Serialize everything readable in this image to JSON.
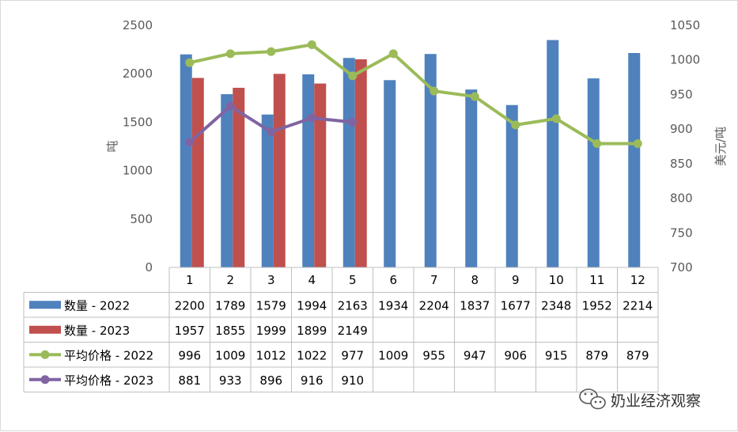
{
  "chart_data": {
    "type": "bar",
    "categories": [
      "1",
      "2",
      "3",
      "4",
      "5",
      "6",
      "7",
      "8",
      "9",
      "10",
      "11",
      "12"
    ],
    "ylabel": "吨",
    "y2label": "美元/吨",
    "ylim": [
      0,
      2500
    ],
    "y2lim": [
      700,
      1050
    ],
    "yticks": [
      "0",
      "500",
      "1000",
      "1500",
      "2000",
      "2500"
    ],
    "y2ticks": [
      "700",
      "750",
      "800",
      "850",
      "900",
      "950",
      "1000",
      "1050"
    ],
    "grid": false,
    "legend": "data-table",
    "series": [
      {
        "name": "数量 - 2022",
        "kind": "bar",
        "axis": "left",
        "color": "#4f81bd",
        "values": [
          2200,
          1789,
          1579,
          1994,
          2163,
          1934,
          2204,
          1837,
          1677,
          2348,
          1952,
          2214
        ]
      },
      {
        "name": "数量 - 2023",
        "kind": "bar",
        "axis": "left",
        "color": "#c0504d",
        "values": [
          1957,
          1855,
          1999,
          1899,
          2149,
          null,
          null,
          null,
          null,
          null,
          null,
          null
        ]
      },
      {
        "name": "平均价格 - 2022",
        "kind": "line",
        "axis": "right",
        "color": "#9bbb59",
        "values": [
          996,
          1009,
          1012,
          1022,
          977,
          1009,
          955,
          947,
          906,
          915,
          879,
          879
        ]
      },
      {
        "name": "平均价格 - 2023",
        "kind": "line",
        "axis": "right",
        "color": "#8064a2",
        "values": [
          881,
          933,
          896,
          916,
          910,
          null,
          null,
          null,
          null,
          null,
          null,
          null
        ]
      }
    ]
  },
  "watermark": {
    "text": "奶业经济观察",
    "icon": "wechat-icon"
  }
}
